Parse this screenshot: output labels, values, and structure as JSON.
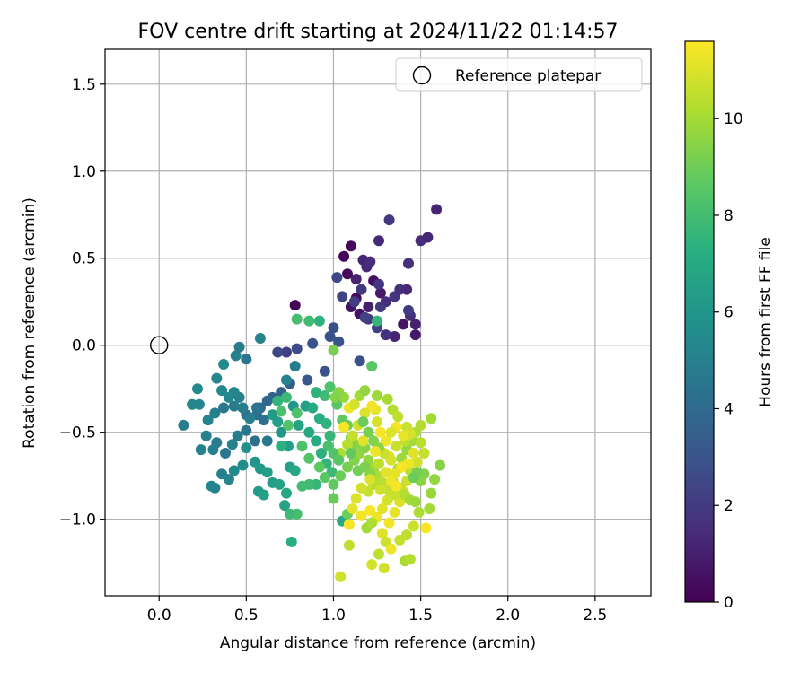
{
  "chart_data": {
    "type": "scatter",
    "title": "FOV centre drift starting at 2024/11/22 01:14:57",
    "xlabel": "Angular distance from reference (arcmin)",
    "ylabel": "Rotation from reference (arcmin)",
    "xlim": [
      -0.31,
      2.82
    ],
    "ylim": [
      -1.44,
      1.7
    ],
    "xticks": [
      0.0,
      0.5,
      1.0,
      1.5,
      2.0,
      2.5
    ],
    "xtick_labels": [
      "0.0",
      "0.5",
      "1.0",
      "1.5",
      "2.0",
      "2.5"
    ],
    "yticks": [
      -1.0,
      -0.5,
      0.0,
      0.5,
      1.0,
      1.5
    ],
    "ytick_labels": [
      "−1.0",
      "−0.5",
      "0.0",
      "0.5",
      "1.0",
      "1.5"
    ],
    "grid": true,
    "legend": {
      "placement": "top-right",
      "entries": [
        "Reference platepar"
      ]
    },
    "colorbar": {
      "label": "Hours from first FF file",
      "colormap": "viridis",
      "range": [
        0,
        11.6
      ],
      "ticks": [
        0,
        2,
        4,
        6,
        8,
        10
      ],
      "tick_labels": [
        "0",
        "2",
        "4",
        "6",
        "8",
        "10"
      ]
    },
    "reference_point": {
      "x": 0.0,
      "y": 0.0,
      "label": "Reference platepar"
    },
    "points": [
      [
        0.78,
        0.23,
        0.1
      ],
      [
        1.06,
        0.51,
        0.2
      ],
      [
        1.1,
        0.57,
        0.3
      ],
      [
        1.08,
        0.41,
        0.3
      ],
      [
        1.13,
        0.27,
        0.4
      ],
      [
        1.23,
        0.37,
        0.5
      ],
      [
        1.1,
        0.22,
        0.6
      ],
      [
        1.15,
        0.18,
        0.5
      ],
      [
        1.27,
        0.3,
        0.8
      ],
      [
        1.2,
        0.22,
        1.0
      ],
      [
        1.13,
        0.38,
        1.1
      ],
      [
        1.17,
        0.49,
        1.2
      ],
      [
        1.26,
        0.6,
        1.3
      ],
      [
        1.32,
        0.72,
        1.9
      ],
      [
        1.59,
        0.78,
        1.2
      ],
      [
        1.5,
        0.6,
        1.5
      ],
      [
        1.54,
        0.62,
        1.3
      ],
      [
        1.43,
        0.47,
        1.6
      ],
      [
        1.19,
        0.45,
        1.4
      ],
      [
        1.21,
        0.48,
        1.5
      ],
      [
        1.26,
        0.35,
        1.8
      ],
      [
        1.3,
        0.25,
        1.5
      ],
      [
        1.35,
        0.28,
        1.8
      ],
      [
        1.38,
        0.32,
        1.7
      ],
      [
        1.42,
        0.32,
        1.3
      ],
      [
        1.44,
        0.17,
        1.6
      ],
      [
        1.47,
        0.12,
        1.1
      ],
      [
        1.43,
        0.2,
        2.1
      ],
      [
        1.4,
        0.12,
        0.7
      ],
      [
        1.47,
        0.06,
        0.8
      ],
      [
        1.35,
        0.05,
        1.2
      ],
      [
        1.3,
        0.06,
        1.7
      ],
      [
        1.27,
        0.22,
        2.0
      ],
      [
        1.25,
        0.1,
        2.2
      ],
      [
        1.2,
        0.15,
        1.9
      ],
      [
        1.18,
        0.16,
        2.3
      ],
      [
        1.12,
        0.25,
        2.1
      ],
      [
        1.16,
        0.32,
        1.9
      ],
      [
        1.02,
        0.39,
        2.6
      ],
      [
        1.05,
        0.28,
        2.4
      ],
      [
        1.0,
        0.1,
        2.8
      ],
      [
        0.98,
        0.05,
        2.9
      ],
      [
        1.03,
        0.02,
        3.0
      ],
      [
        0.88,
        0.01,
        3.0
      ],
      [
        0.79,
        -0.02,
        2.7
      ],
      [
        0.73,
        -0.04,
        2.2
      ],
      [
        0.68,
        -0.04,
        2.6
      ],
      [
        0.95,
        -0.15,
        2.9
      ],
      [
        1.15,
        -0.09,
        2.9
      ],
      [
        0.85,
        -0.2,
        3.2
      ],
      [
        0.75,
        -0.22,
        3.5
      ],
      [
        0.7,
        -0.27,
        3.6
      ],
      [
        0.65,
        -0.3,
        3.7
      ],
      [
        0.62,
        -0.32,
        3.9
      ],
      [
        0.58,
        -0.36,
        4.1
      ],
      [
        0.56,
        -0.4,
        4.3
      ],
      [
        0.5,
        -0.4,
        4.3
      ],
      [
        0.46,
        -0.3,
        5.2
      ],
      [
        0.43,
        -0.27,
        5.3
      ],
      [
        0.4,
        -0.3,
        5.4
      ],
      [
        0.36,
        -0.26,
        5.5
      ],
      [
        0.33,
        -0.19,
        5.4
      ],
      [
        0.37,
        -0.11,
        5.5
      ],
      [
        0.44,
        -0.06,
        5.1
      ],
      [
        0.46,
        -0.01,
        4.8
      ],
      [
        0.5,
        -0.08,
        4.6
      ],
      [
        0.58,
        0.04,
        5.3
      ],
      [
        0.22,
        -0.25,
        5.5
      ],
      [
        0.19,
        -0.34,
        5.3
      ],
      [
        0.23,
        -0.34,
        5.4
      ],
      [
        0.28,
        -0.43,
        5.2
      ],
      [
        0.32,
        -0.39,
        5.0
      ],
      [
        0.37,
        -0.36,
        4.7
      ],
      [
        0.43,
        -0.35,
        4.8
      ],
      [
        0.48,
        -0.36,
        4.9
      ],
      [
        0.52,
        -0.42,
        5.0
      ],
      [
        0.56,
        -0.36,
        4.5
      ],
      [
        0.6,
        -0.43,
        4.4
      ],
      [
        0.62,
        -0.55,
        4.7
      ],
      [
        0.55,
        -0.55,
        4.4
      ],
      [
        0.5,
        -0.49,
        4.6
      ],
      [
        0.45,
        -0.52,
        4.9
      ],
      [
        0.42,
        -0.57,
        5.1
      ],
      [
        0.38,
        -0.62,
        4.6
      ],
      [
        0.33,
        -0.56,
        4.8
      ],
      [
        0.27,
        -0.52,
        5.1
      ],
      [
        0.14,
        -0.46,
        4.9
      ],
      [
        0.24,
        -0.6,
        5.2
      ],
      [
        0.31,
        -0.6,
        5.0
      ],
      [
        0.3,
        -0.81,
        5.3
      ],
      [
        0.32,
        -0.82,
        5.2
      ],
      [
        0.36,
        -0.74,
        5.0
      ],
      [
        0.4,
        -0.77,
        5.2
      ],
      [
        0.43,
        -0.72,
        5.5
      ],
      [
        0.48,
        -0.69,
        5.7
      ],
      [
        0.5,
        -0.59,
        5.9
      ],
      [
        0.55,
        -0.67,
        6.1
      ],
      [
        0.58,
        -0.71,
        6.3
      ],
      [
        0.62,
        -0.73,
        6.5
      ],
      [
        0.57,
        -0.84,
        6.4
      ],
      [
        0.6,
        -0.86,
        6.6
      ],
      [
        0.65,
        -0.79,
        6.5
      ],
      [
        0.69,
        -0.8,
        6.7
      ],
      [
        0.73,
        -0.85,
        7.0
      ],
      [
        0.72,
        -0.92,
        6.8
      ],
      [
        0.75,
        -0.7,
        6.6
      ],
      [
        0.78,
        -0.72,
        6.9
      ],
      [
        0.74,
        -0.58,
        6.5
      ],
      [
        0.7,
        -0.5,
        6.2
      ],
      [
        0.68,
        -0.44,
        6.6
      ],
      [
        0.65,
        -0.4,
        6.3
      ],
      [
        0.73,
        -0.2,
        5.2
      ],
      [
        0.78,
        -0.12,
        4.9
      ],
      [
        0.77,
        -0.35,
        6.1
      ],
      [
        0.84,
        -0.35,
        6.5
      ],
      [
        0.8,
        -0.46,
        6.8
      ],
      [
        0.86,
        -0.5,
        7.0
      ],
      [
        0.9,
        -0.55,
        7.2
      ],
      [
        0.93,
        -0.62,
        7.4
      ],
      [
        0.96,
        -0.68,
        7.6
      ],
      [
        0.99,
        -0.73,
        7.8
      ],
      [
        0.9,
        -0.8,
        7.7
      ],
      [
        0.86,
        -0.8,
        7.9
      ],
      [
        0.82,
        -0.81,
        8.0
      ],
      [
        0.79,
        -0.97,
        8.1
      ],
      [
        0.75,
        -0.97,
        7.9
      ],
      [
        0.76,
        -1.13,
        7.3
      ],
      [
        0.7,
        -0.58,
        7.4
      ],
      [
        0.68,
        -0.32,
        7.6
      ],
      [
        0.73,
        -0.3,
        7.8
      ],
      [
        0.7,
        -0.38,
        8.2
      ],
      [
        0.74,
        -0.46,
        8.4
      ],
      [
        0.79,
        -0.39,
        8.3
      ],
      [
        0.82,
        -0.58,
        8.3
      ],
      [
        0.86,
        -0.65,
        8.5
      ],
      [
        0.92,
        -0.7,
        8.7
      ],
      [
        0.95,
        -0.76,
        8.6
      ],
      [
        1.0,
        -0.8,
        8.8
      ],
      [
        1.04,
        -0.75,
        9.0
      ],
      [
        1.08,
        -0.7,
        9.2
      ],
      [
        1.12,
        -0.66,
        9.4
      ],
      [
        1.0,
        -0.88,
        8.9
      ],
      [
        1.05,
        -1.01,
        7.0
      ],
      [
        1.08,
        -0.97,
        9.0
      ],
      [
        0.86,
        0.14,
        8.0
      ],
      [
        0.79,
        0.15,
        8.1
      ],
      [
        0.92,
        0.14,
        7.5
      ],
      [
        1.0,
        -0.03,
        9.2
      ],
      [
        1.22,
        -0.12,
        8.6
      ],
      [
        1.25,
        0.14,
        7.6
      ],
      [
        0.88,
        -0.36,
        7.1
      ],
      [
        0.92,
        -0.42,
        7.3
      ],
      [
        0.96,
        -0.45,
        7.5
      ],
      [
        0.98,
        -0.52,
        7.7
      ],
      [
        0.9,
        -0.27,
        7.5
      ],
      [
        0.95,
        -0.29,
        7.9
      ],
      [
        0.98,
        -0.24,
        8.3
      ],
      [
        1.02,
        -0.34,
        8.6
      ],
      [
        1.05,
        -0.43,
        8.8
      ],
      [
        1.08,
        -0.46,
        9.0
      ],
      [
        1.1,
        -0.53,
        9.3
      ],
      [
        1.13,
        -0.57,
        9.5
      ],
      [
        1.15,
        -0.62,
        9.7
      ],
      [
        1.18,
        -0.59,
        9.5
      ],
      [
        1.2,
        -0.66,
        9.8
      ],
      [
        1.23,
        -0.71,
        10.0
      ],
      [
        1.25,
        -0.75,
        10.2
      ],
      [
        1.28,
        -0.79,
        10.4
      ],
      [
        1.31,
        -0.83,
        10.6
      ],
      [
        1.34,
        -0.78,
        10.3
      ],
      [
        1.37,
        -0.71,
        10.1
      ],
      [
        1.39,
        -0.65,
        9.9
      ],
      [
        1.42,
        -0.6,
        9.8
      ],
      [
        1.45,
        -0.55,
        10.0
      ],
      [
        1.47,
        -0.5,
        10.3
      ],
      [
        1.5,
        -0.56,
        10.4
      ],
      [
        1.52,
        -0.62,
        10.6
      ],
      [
        1.48,
        -0.67,
        10.8
      ],
      [
        1.44,
        -0.72,
        10.5
      ],
      [
        1.42,
        -0.78,
        10.7
      ],
      [
        1.4,
        -0.84,
        10.9
      ],
      [
        1.38,
        -0.9,
        11.0
      ],
      [
        1.35,
        -0.96,
        11.2
      ],
      [
        1.32,
        -1.02,
        11.4
      ],
      [
        1.28,
        -1.08,
        11.1
      ],
      [
        1.3,
        -1.13,
        10.8
      ],
      [
        1.33,
        -1.17,
        11.3
      ],
      [
        1.26,
        -1.2,
        10.5
      ],
      [
        1.22,
        -1.26,
        10.9
      ],
      [
        1.29,
        -1.28,
        10.8
      ],
      [
        1.41,
        -1.24,
        10.1
      ],
      [
        1.44,
        -1.23,
        10.3
      ],
      [
        1.38,
        -1.12,
        10.6
      ],
      [
        1.42,
        -1.09,
        10.5
      ],
      [
        1.46,
        -1.04,
        10.7
      ],
      [
        1.53,
        -1.05,
        11.5
      ],
      [
        1.49,
        -0.96,
        10.2
      ],
      [
        1.55,
        -0.94,
        10.0
      ],
      [
        1.56,
        -0.85,
        9.8
      ],
      [
        1.58,
        -0.77,
        9.7
      ],
      [
        1.61,
        -0.69,
        9.5
      ],
      [
        1.56,
        -0.42,
        10.0
      ],
      [
        1.5,
        -0.46,
        10.3
      ],
      [
        1.41,
        -0.55,
        10.5
      ],
      [
        1.36,
        -0.58,
        10.7
      ],
      [
        1.32,
        -0.64,
        11.0
      ],
      [
        1.3,
        -0.55,
        11.3
      ],
      [
        1.27,
        -0.5,
        11.5
      ],
      [
        1.25,
        -0.44,
        10.9
      ],
      [
        1.24,
        -0.37,
        11.2
      ],
      [
        1.22,
        -0.35,
        11.4
      ],
      [
        1.18,
        -0.39,
        11.0
      ],
      [
        1.14,
        -0.46,
        10.8
      ],
      [
        1.11,
        -0.52,
        10.6
      ],
      [
        1.08,
        -0.57,
        10.4
      ],
      [
        1.04,
        -0.62,
        10.2
      ],
      [
        1.06,
        -0.47,
        11.5
      ],
      [
        1.09,
        -0.36,
        11.3
      ],
      [
        1.12,
        -0.34,
        10.9
      ],
      [
        1.06,
        -0.3,
        9.8
      ],
      [
        1.03,
        -0.27,
        9.6
      ],
      [
        1.01,
        -0.3,
        9.4
      ],
      [
        1.15,
        -0.29,
        10.0
      ],
      [
        1.18,
        -0.26,
        9.7
      ],
      [
        1.25,
        -0.29,
        9.9
      ],
      [
        1.31,
        -0.31,
        10.1
      ],
      [
        1.34,
        -0.37,
        10.3
      ],
      [
        1.37,
        -0.41,
        10.5
      ],
      [
        1.42,
        -0.47,
        10.7
      ],
      [
        1.44,
        -0.51,
        10.9
      ],
      [
        1.46,
        -0.62,
        11.1
      ],
      [
        1.43,
        -0.68,
        11.3
      ],
      [
        1.39,
        -0.7,
        11.5
      ],
      [
        1.35,
        -0.74,
        11.2
      ],
      [
        1.33,
        -0.66,
        10.9
      ],
      [
        1.29,
        -0.62,
        10.7
      ],
      [
        1.26,
        -0.68,
        10.5
      ],
      [
        1.23,
        -0.8,
        10.3
      ],
      [
        1.2,
        -0.84,
        10.6
      ],
      [
        1.16,
        -0.82,
        10.8
      ],
      [
        1.13,
        -0.88,
        11.0
      ],
      [
        1.11,
        -0.94,
        11.2
      ],
      [
        1.16,
        -0.98,
        11.4
      ],
      [
        1.21,
        -0.95,
        11.5
      ],
      [
        1.25,
        -0.99,
        11.3
      ],
      [
        1.28,
        -0.94,
        11.1
      ],
      [
        1.31,
        -0.89,
        10.9
      ],
      [
        1.35,
        -0.86,
        10.7
      ],
      [
        1.38,
        -0.82,
        10.5
      ],
      [
        1.41,
        -0.86,
        10.3
      ],
      [
        1.44,
        -0.89,
        10.1
      ],
      [
        1.47,
        -0.9,
        9.9
      ],
      [
        1.5,
        -0.78,
        9.6
      ],
      [
        1.52,
        -0.74,
        9.4
      ],
      [
        1.48,
        -0.73,
        9.2
      ],
      [
        1.46,
        -0.76,
        9.0
      ],
      [
        1.14,
        -0.72,
        9.1
      ],
      [
        1.18,
        -0.7,
        9.3
      ],
      [
        1.21,
        -0.74,
        9.5
      ],
      [
        1.09,
        -1.03,
        11.5
      ],
      [
        1.04,
        -1.33,
        10.8
      ],
      [
        1.09,
        -1.15,
        10.5
      ],
      [
        1.19,
        -1.05,
        10.0
      ],
      [
        1.22,
        -1.02,
        10.2
      ],
      [
        1.17,
        -0.44,
        9.0
      ],
      [
        1.2,
        -0.5,
        9.2
      ],
      [
        1.23,
        -0.55,
        9.4
      ],
      [
        1.26,
        -0.59,
        9.6
      ],
      [
        0.97,
        -0.58,
        8.2
      ],
      [
        1.0,
        -0.62,
        8.4
      ],
      [
        1.03,
        -0.66,
        8.6
      ],
      [
        1.1,
        -0.62,
        8.8
      ],
      [
        1.36,
        -0.47,
        11.4
      ],
      [
        1.4,
        -0.52,
        11.2
      ],
      [
        1.33,
        -0.5,
        11.0
      ],
      [
        1.17,
        -0.55,
        11.1
      ],
      [
        1.24,
        -0.61,
        11.3
      ],
      [
        1.21,
        -0.77,
        11.0
      ],
      [
        1.27,
        -0.83,
        10.8
      ],
      [
        1.3,
        -0.73,
        11.1
      ],
      [
        1.33,
        -0.78,
        11.3
      ],
      [
        1.36,
        -0.81,
        11.5
      ]
    ]
  }
}
